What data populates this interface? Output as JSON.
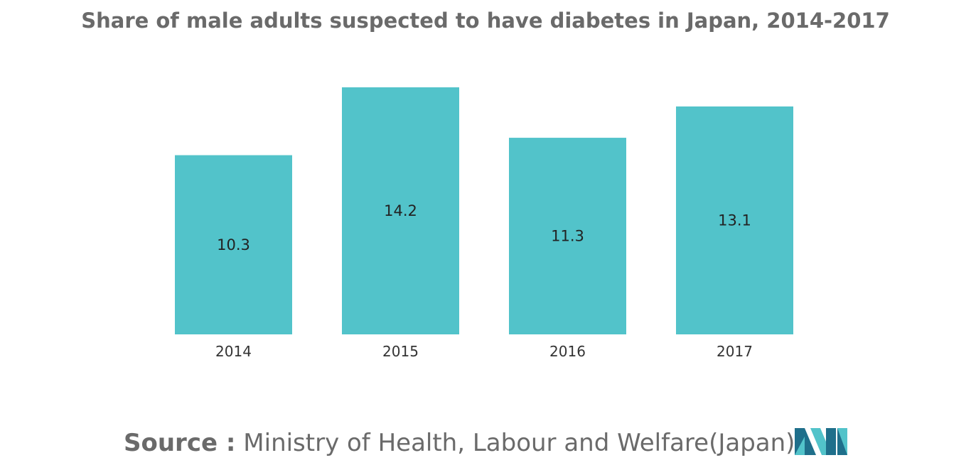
{
  "chart_data": {
    "type": "bar",
    "title": "Share of male adults suspected to have diabetes in Japan, 2014-2017",
    "xlabel": "",
    "ylabel": "",
    "categories": [
      "2014",
      "2015",
      "2016",
      "2017"
    ],
    "values": [
      10.3,
      14.2,
      11.3,
      13.1
    ],
    "ylim": [
      0,
      14.2
    ],
    "grid": false,
    "legend": "none",
    "bar_color": "#52c3ca"
  },
  "source": {
    "label": "Source :",
    "text": "Ministry of Health, Labour and Welfare(Japan)"
  },
  "logo": {
    "icon": "mordor-intelligence-logo-icon",
    "colors": [
      "#1f6f8b",
      "#52c3ca"
    ]
  }
}
